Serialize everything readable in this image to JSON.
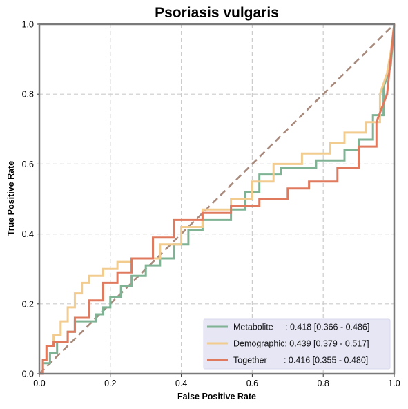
{
  "chart_data": {
    "type": "line",
    "title": "Psoriasis vulgaris",
    "xlabel": "False Positive Rate",
    "ylabel": "True Positive Rate",
    "xlim": [
      0,
      1
    ],
    "ylim": [
      0,
      1
    ],
    "x_ticks": [
      "0.0",
      "0.2",
      "0.4",
      "0.6",
      "0.8",
      "1.0"
    ],
    "y_ticks": [
      "0.0",
      "0.2",
      "0.4",
      "0.6",
      "0.8",
      "1.0"
    ],
    "grid": true,
    "legend_position": "bottom-right",
    "diagonal": {
      "x": [
        0,
        1
      ],
      "y": [
        0,
        1
      ],
      "color": "#a88a7d",
      "style": "dashed"
    },
    "series": [
      {
        "name": "Metabolite",
        "color": "#7fb394",
        "legend_label": "Metabolite     : 0.418 [0.366 - 0.486]",
        "x": [
          0,
          0.01,
          0.01,
          0.03,
          0.03,
          0.05,
          0.05,
          0.08,
          0.08,
          0.1,
          0.1,
          0.12,
          0.12,
          0.16,
          0.16,
          0.18,
          0.18,
          0.2,
          0.2,
          0.23,
          0.23,
          0.26,
          0.26,
          0.3,
          0.3,
          0.34,
          0.34,
          0.38,
          0.38,
          0.42,
          0.42,
          0.46,
          0.46,
          0.54,
          0.54,
          0.58,
          0.58,
          0.62,
          0.62,
          0.68,
          0.68,
          0.78,
          0.78,
          0.86,
          0.86,
          0.9,
          0.9,
          0.94,
          0.94,
          0.97,
          0.97,
          0.99,
          1.0
        ],
        "y": [
          0,
          0,
          0.03,
          0.03,
          0.06,
          0.06,
          0.09,
          0.09,
          0.12,
          0.12,
          0.15,
          0.15,
          0.15,
          0.15,
          0.17,
          0.17,
          0.19,
          0.19,
          0.22,
          0.22,
          0.25,
          0.25,
          0.28,
          0.28,
          0.31,
          0.31,
          0.33,
          0.33,
          0.37,
          0.37,
          0.41,
          0.41,
          0.44,
          0.44,
          0.47,
          0.47,
          0.52,
          0.52,
          0.57,
          0.57,
          0.59,
          0.59,
          0.61,
          0.61,
          0.64,
          0.64,
          0.67,
          0.67,
          0.74,
          0.74,
          0.82,
          0.88,
          1.0
        ]
      },
      {
        "name": "Demographic",
        "color": "#f2cc8f",
        "legend_label": "Demographic: 0.439 [0.379 - 0.517]",
        "x": [
          0,
          0.01,
          0.01,
          0.02,
          0.02,
          0.04,
          0.04,
          0.06,
          0.06,
          0.08,
          0.08,
          0.1,
          0.1,
          0.12,
          0.12,
          0.14,
          0.14,
          0.18,
          0.18,
          0.22,
          0.22,
          0.26,
          0.26,
          0.34,
          0.34,
          0.4,
          0.4,
          0.46,
          0.46,
          0.54,
          0.54,
          0.6,
          0.6,
          0.66,
          0.66,
          0.74,
          0.74,
          0.82,
          0.82,
          0.86,
          0.86,
          0.92,
          0.92,
          0.96,
          0.96,
          0.98,
          0.99,
          1.0
        ],
        "y": [
          0,
          0,
          0.04,
          0.04,
          0.08,
          0.08,
          0.11,
          0.11,
          0.15,
          0.15,
          0.19,
          0.19,
          0.23,
          0.23,
          0.26,
          0.26,
          0.28,
          0.28,
          0.3,
          0.3,
          0.32,
          0.32,
          0.33,
          0.33,
          0.37,
          0.37,
          0.42,
          0.42,
          0.47,
          0.47,
          0.5,
          0.5,
          0.55,
          0.55,
          0.6,
          0.6,
          0.63,
          0.63,
          0.66,
          0.66,
          0.69,
          0.69,
          0.72,
          0.72,
          0.8,
          0.86,
          0.92,
          1.0
        ]
      },
      {
        "name": "Together",
        "color": "#e07a5f",
        "legend_label": "Together       : 0.416 [0.355 - 0.480]",
        "x": [
          0,
          0.01,
          0.01,
          0.02,
          0.02,
          0.04,
          0.04,
          0.08,
          0.08,
          0.1,
          0.1,
          0.14,
          0.14,
          0.18,
          0.18,
          0.22,
          0.22,
          0.26,
          0.26,
          0.32,
          0.32,
          0.38,
          0.38,
          0.46,
          0.46,
          0.54,
          0.54,
          0.62,
          0.62,
          0.7,
          0.7,
          0.76,
          0.76,
          0.84,
          0.84,
          0.9,
          0.9,
          0.95,
          0.95,
          0.98,
          0.99,
          1.0
        ],
        "y": [
          0,
          0,
          0.04,
          0.04,
          0.08,
          0.08,
          0.09,
          0.09,
          0.12,
          0.12,
          0.16,
          0.16,
          0.21,
          0.21,
          0.26,
          0.26,
          0.29,
          0.29,
          0.33,
          0.33,
          0.39,
          0.39,
          0.44,
          0.44,
          0.46,
          0.46,
          0.48,
          0.48,
          0.5,
          0.5,
          0.53,
          0.53,
          0.55,
          0.55,
          0.59,
          0.59,
          0.65,
          0.65,
          0.72,
          0.8,
          0.9,
          1.0
        ]
      }
    ]
  },
  "colors": {
    "axis": "#7a7a7a",
    "grid": "#cccccc",
    "legend_bg": "#e6e6f5",
    "legend_border": "#d8d8ee"
  }
}
